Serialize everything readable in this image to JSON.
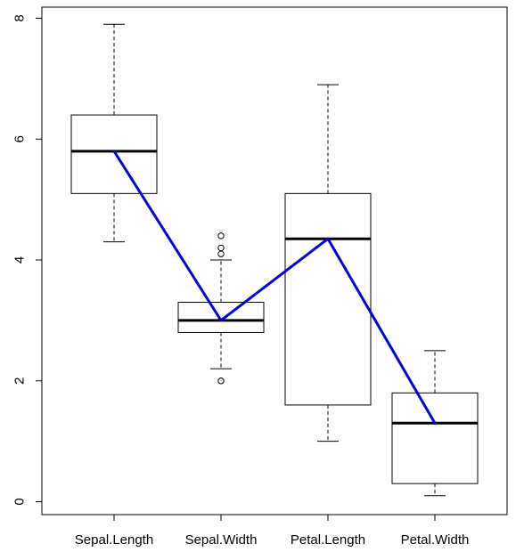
{
  "chart_data": {
    "type": "boxplot",
    "categories": [
      "Sepal.Length",
      "Sepal.Width",
      "Petal.Length",
      "Petal.Width"
    ],
    "boxes": [
      {
        "whisker_low": 4.3,
        "q1": 5.1,
        "median": 5.8,
        "q3": 6.4,
        "whisker_high": 7.9,
        "outliers": []
      },
      {
        "whisker_low": 2.2,
        "q1": 2.8,
        "median": 3.0,
        "q3": 3.3,
        "whisker_high": 4.0,
        "outliers": [
          4.4,
          4.1,
          4.2,
          2.0
        ]
      },
      {
        "whisker_low": 1.0,
        "q1": 1.6,
        "median": 4.35,
        "q3": 5.1,
        "whisker_high": 6.9,
        "outliers": []
      },
      {
        "whisker_low": 0.1,
        "q1": 0.3,
        "median": 1.3,
        "q3": 1.8,
        "whisker_high": 2.5,
        "outliers": []
      }
    ],
    "line_overlay": {
      "values": [
        5.8,
        3.0,
        4.35,
        1.3
      ],
      "color": "#0000dd"
    },
    "y_ticks": [
      0,
      2,
      4,
      6,
      8
    ],
    "y_tick_labels": [
      "0",
      "2",
      "4",
      "6",
      "8"
    ],
    "ylim": [
      -0.2,
      8.2
    ],
    "title": "",
    "xlabel": "",
    "ylabel": "",
    "grid": false,
    "colors": {
      "box_fill": "#ffffff",
      "box_stroke": "#000000",
      "line": "#0000dd"
    }
  }
}
